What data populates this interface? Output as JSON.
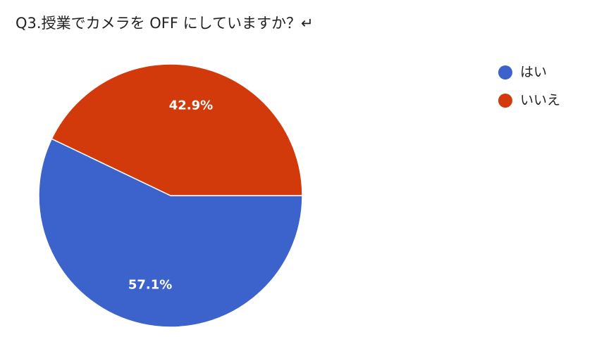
{
  "chart_data": {
    "type": "pie",
    "title": "Q3.授業でカメラを OFF にしていますか？↵",
    "categories": [
      "はい",
      "いいえ"
    ],
    "values": [
      57.1,
      42.9
    ],
    "value_labels": [
      "57.1%",
      "42.9%"
    ],
    "colors": [
      "#3c62cb",
      "#d23a0b"
    ],
    "legend": "right"
  }
}
